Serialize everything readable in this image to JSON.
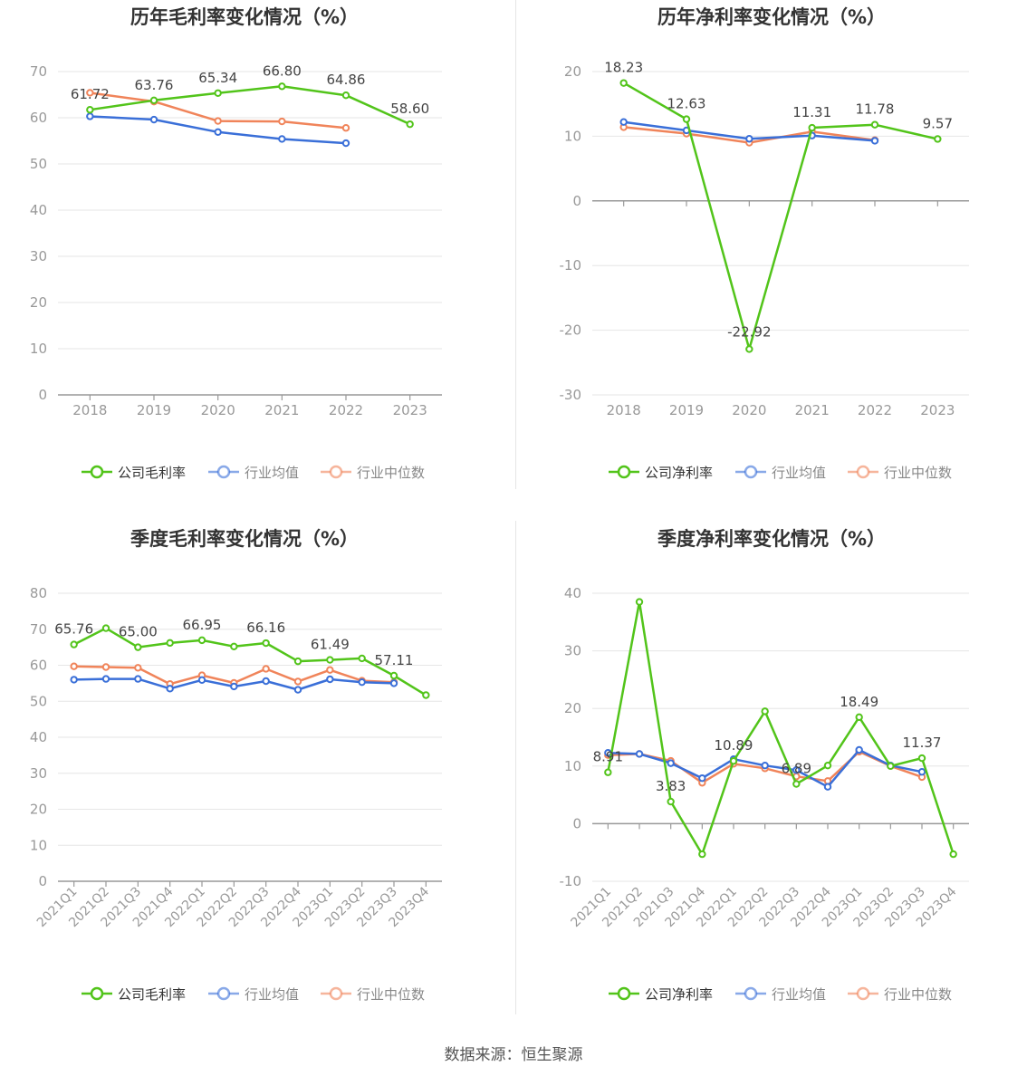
{
  "colors": {
    "company": "#52c41a",
    "avg": "#3a6fd8",
    "median": "#f0845a",
    "grid": "#e6e6e6",
    "axis": "#999999",
    "tick_text": "#999999",
    "label_text": "#444444",
    "title_text": "#333333"
  },
  "footer": {
    "source": "数据来源：恒生聚源"
  },
  "chart_data": [
    {
      "type": "line",
      "title": "历年毛利率变化情况（%）",
      "categories": [
        "2018",
        "2019",
        "2020",
        "2021",
        "2022",
        "2023"
      ],
      "ylim": [
        0,
        70
      ],
      "yticks": [
        0,
        10,
        20,
        30,
        40,
        50,
        60,
        70
      ],
      "series": [
        {
          "name": "公司毛利率",
          "color_key": "company",
          "values": [
            61.72,
            63.76,
            65.34,
            66.8,
            64.86,
            58.6
          ],
          "labels": [
            "61.72",
            "63.76",
            "65.34",
            "66.80",
            "64.86",
            "58.60"
          ]
        },
        {
          "name": "行业均值",
          "color_key": "avg",
          "values": [
            60.3,
            59.6,
            56.9,
            55.4,
            54.5,
            null
          ]
        },
        {
          "name": "行业中位数",
          "color_key": "median",
          "values": [
            65.4,
            63.5,
            59.3,
            59.2,
            57.8,
            null
          ]
        }
      ],
      "legend": "bottom-center",
      "grid": true
    },
    {
      "type": "line",
      "title": "历年净利率变化情况（%）",
      "categories": [
        "2018",
        "2019",
        "2020",
        "2021",
        "2022",
        "2023"
      ],
      "ylim": [
        -30,
        20
      ],
      "yticks": [
        -30,
        -20,
        -10,
        0,
        10,
        20
      ],
      "series": [
        {
          "name": "公司净利率",
          "color_key": "company",
          "values": [
            18.23,
            12.63,
            -22.92,
            11.31,
            11.78,
            9.57
          ],
          "labels": [
            "18.23",
            "12.63",
            "-22.92",
            "11.31",
            "11.78",
            "9.57"
          ]
        },
        {
          "name": "行业均值",
          "color_key": "avg",
          "values": [
            12.2,
            10.9,
            9.6,
            10.1,
            9.3,
            null
          ]
        },
        {
          "name": "行业中位数",
          "color_key": "median",
          "values": [
            11.4,
            10.4,
            9.0,
            10.7,
            9.4,
            null
          ]
        }
      ],
      "legend": "bottom-center",
      "grid": true
    },
    {
      "type": "line",
      "title": "季度毛利率变化情况（%）",
      "categories": [
        "2021Q1",
        "2021Q2",
        "2021Q3",
        "2021Q4",
        "2022Q1",
        "2022Q2",
        "2022Q3",
        "2022Q4",
        "2023Q1",
        "2023Q2",
        "2023Q3",
        "2023Q4"
      ],
      "ylim": [
        0,
        80
      ],
      "yticks": [
        0,
        10,
        20,
        30,
        40,
        50,
        60,
        70,
        80
      ],
      "series": [
        {
          "name": "公司毛利率",
          "color_key": "company",
          "values": [
            65.76,
            70.3,
            65.0,
            66.2,
            66.95,
            65.2,
            66.16,
            61.1,
            61.49,
            61.9,
            57.11,
            51.7
          ],
          "labels": [
            "65.76",
            "",
            "65.00",
            "",
            "66.95",
            "",
            "66.16",
            "",
            "61.49",
            "",
            "57.11",
            ""
          ]
        },
        {
          "name": "行业均值",
          "color_key": "avg",
          "values": [
            56.0,
            56.2,
            56.2,
            53.5,
            55.9,
            54.1,
            55.6,
            53.2,
            56.1,
            55.3,
            55.0,
            null
          ]
        },
        {
          "name": "行业中位数",
          "color_key": "median",
          "values": [
            59.7,
            59.5,
            59.3,
            54.8,
            57.2,
            55.1,
            59.0,
            55.5,
            58.7,
            55.7,
            55.3,
            null
          ]
        }
      ],
      "legend": "bottom-center",
      "grid": true
    },
    {
      "type": "line",
      "title": "季度净利率变化情况（%）",
      "categories": [
        "2021Q1",
        "2021Q2",
        "2021Q3",
        "2021Q4",
        "2022Q1",
        "2022Q2",
        "2022Q3",
        "2022Q4",
        "2023Q1",
        "2023Q2",
        "2023Q3",
        "2023Q4"
      ],
      "ylim": [
        -10,
        40
      ],
      "yticks": [
        -10,
        0,
        10,
        20,
        30,
        40
      ],
      "series": [
        {
          "name": "公司净利率",
          "color_key": "company",
          "values": [
            8.91,
            38.5,
            3.83,
            -5.3,
            10.89,
            19.5,
            6.89,
            10.1,
            18.49,
            10.0,
            11.37,
            -5.3
          ],
          "labels": [
            "8.91",
            "",
            "3.83",
            "",
            "10.89",
            "",
            "6.89",
            "",
            "18.49",
            "",
            "11.37",
            ""
          ]
        },
        {
          "name": "行业均值",
          "color_key": "avg",
          "values": [
            12.3,
            12.1,
            10.5,
            7.9,
            11.2,
            10.1,
            9.3,
            6.4,
            12.8,
            10.1,
            9.0,
            null
          ]
        },
        {
          "name": "行业中位数",
          "color_key": "median",
          "values": [
            11.9,
            12.1,
            10.9,
            7.1,
            10.4,
            9.6,
            8.2,
            7.4,
            12.5,
            10.0,
            8.1,
            null
          ]
        }
      ],
      "legend": "bottom-center",
      "grid": true
    }
  ]
}
